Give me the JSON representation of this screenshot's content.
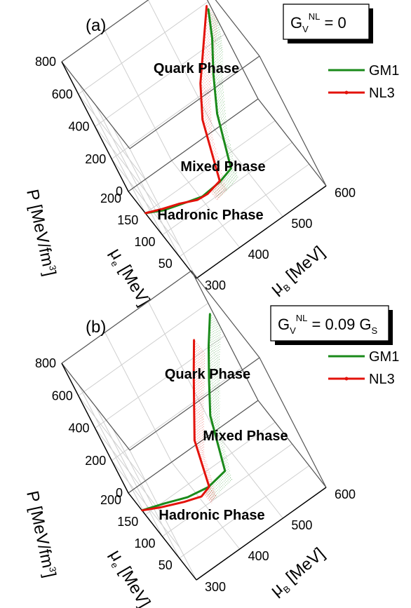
{
  "chart_data": [
    {
      "type": "line",
      "panel_label": "(a)",
      "annotation": {
        "main": "G",
        "sub": "V",
        "sup": "NL",
        "rhs": "= 0",
        "rhs_sub": ""
      },
      "xlabel": {
        "main": "μ",
        "sub": "B",
        "rest": " [MeV]"
      },
      "ylabel": {
        "main": "μ",
        "sub": "e",
        "rest": " [MeV]"
      },
      "zlabel": {
        "main": "P [MeV/fm",
        "sup": "3",
        "rest": "]"
      },
      "x_ticks": [
        "300",
        "400",
        "500",
        "600"
      ],
      "y_ticks": [
        "200",
        "150",
        "100",
        "50"
      ],
      "z_ticks": [
        "800",
        "600",
        "400",
        "200",
        "0"
      ],
      "xlim": [
        300,
        600
      ],
      "ylim": [
        0,
        200
      ],
      "zlim": [
        0,
        800
      ],
      "phase_labels": [
        "Quark Phase",
        "Mixed Phase",
        "Hadronic Phase"
      ],
      "grid": true,
      "legend": "top-right",
      "series": [
        {
          "name": "GM1",
          "color": "#1a8a1a",
          "mu_B": [
            300,
            330,
            370,
            400,
            440,
            470,
            500,
            530,
            560,
            580
          ],
          "mu_e": [
            150,
            130,
            110,
            95,
            85,
            80,
            110,
            120,
            125,
            130
          ],
          "P": [
            0,
            15,
            40,
            60,
            100,
            140,
            340,
            500,
            650,
            780
          ]
        },
        {
          "name": "NL3",
          "color": "#e3120b",
          "mu_B": [
            300,
            330,
            360,
            390,
            410,
            440,
            470,
            500,
            540,
            580
          ],
          "mu_e": [
            150,
            135,
            120,
            100,
            90,
            80,
            110,
            120,
            125,
            130
          ],
          "P": [
            0,
            10,
            25,
            45,
            70,
            120,
            360,
            500,
            650,
            800
          ]
        }
      ]
    },
    {
      "type": "line",
      "panel_label": "(b)",
      "annotation": {
        "main": "G",
        "sub": "V",
        "sup": "NL",
        "rhs": "= 0.09 G",
        "rhs_sub": "S"
      },
      "xlabel": {
        "main": "μ",
        "sub": "B",
        "rest": " [MeV]"
      },
      "ylabel": {
        "main": "μ",
        "sub": "e",
        "rest": " [MeV]"
      },
      "zlabel": {
        "main": "P [MeV/fm",
        "sup": "3",
        "rest": "]"
      },
      "x_ticks": [
        "300",
        "400",
        "500",
        "600"
      ],
      "y_ticks": [
        "200",
        "150",
        "100",
        "50"
      ],
      "z_ticks": [
        "800",
        "600",
        "400",
        "200",
        "0"
      ],
      "xlim": [
        300,
        600
      ],
      "ylim": [
        0,
        200
      ],
      "zlim": [
        0,
        800
      ],
      "phase_labels": [
        "Quark Phase",
        "Mixed Phase",
        "Hadronic Phase"
      ],
      "grid": true,
      "legend": "top-right",
      "series": [
        {
          "name": "GM1",
          "color": "#1a8a1a",
          "mu_B": [
            300,
            340,
            380,
            420,
            460,
            490,
            520,
            550,
            580
          ],
          "mu_e": [
            160,
            140,
            115,
            95,
            85,
            120,
            125,
            130,
            130
          ],
          "P": [
            0,
            20,
            50,
            90,
            140,
            330,
            480,
            620,
            760
          ]
        },
        {
          "name": "NL3",
          "color": "#e3120b",
          "mu_B": [
            300,
            330,
            370,
            400,
            420,
            440,
            470,
            500,
            530
          ],
          "mu_e": [
            160,
            140,
            115,
            95,
            88,
            110,
            120,
            125,
            128
          ],
          "P": [
            0,
            15,
            40,
            70,
            110,
            300,
            420,
            560,
            700
          ]
        }
      ]
    }
  ]
}
